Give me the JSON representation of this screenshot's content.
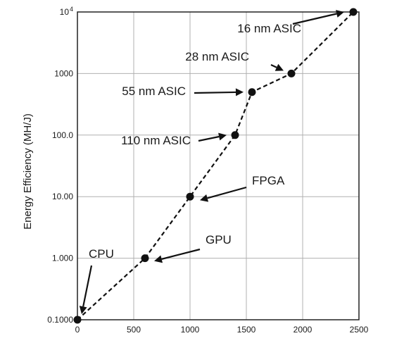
{
  "chart_data": {
    "type": "scatter",
    "title": "",
    "xlabel": "",
    "ylabel": "Energy Efficiency (MH/J)",
    "x_scale": "linear",
    "y_scale": "log",
    "xlim": [
      0,
      2500
    ],
    "ylim": [
      0.1,
      10000
    ],
    "grid": true,
    "x_ticks": [
      0,
      500,
      1000,
      1500,
      2000,
      2500
    ],
    "x_tick_labels": [
      "0",
      "500",
      "1000",
      "1500",
      "2000",
      "2500"
    ],
    "y_ticks": [
      0.1,
      1,
      10,
      100,
      1000,
      10000
    ],
    "y_tick_labels": [
      "0.1000",
      "1.000",
      "10.00",
      "100.0",
      "1000"
    ],
    "y_top_tick_base": "10",
    "y_top_tick_exponent": "4",
    "line_style": "dashed",
    "points": [
      {
        "x": 0,
        "y": 0.1
      },
      {
        "x": 600,
        "y": 1
      },
      {
        "x": 1000,
        "y": 10
      },
      {
        "x": 1400,
        "y": 100
      },
      {
        "x": 1550,
        "y": 500
      },
      {
        "x": 1900,
        "y": 1000
      },
      {
        "x": 2450,
        "y": 10000
      }
    ],
    "annotations": [
      {
        "id": "cpu",
        "text": "CPU",
        "x": 0,
        "y": 0.1
      },
      {
        "id": "gpu",
        "text": "GPU",
        "x": 600,
        "y": 1
      },
      {
        "id": "fpga",
        "text": "FPGA",
        "x": 1000,
        "y": 10
      },
      {
        "id": "asic110",
        "text": "110 nm ASIC",
        "x": 1400,
        "y": 100
      },
      {
        "id": "asic55",
        "text": "55 nm ASIC",
        "x": 1550,
        "y": 500
      },
      {
        "id": "asic28",
        "text": "28 nm ASIC",
        "x": 1900,
        "y": 1000
      },
      {
        "id": "asic16",
        "text": "16 nm ASIC",
        "x": 2450,
        "y": 10000
      }
    ]
  }
}
